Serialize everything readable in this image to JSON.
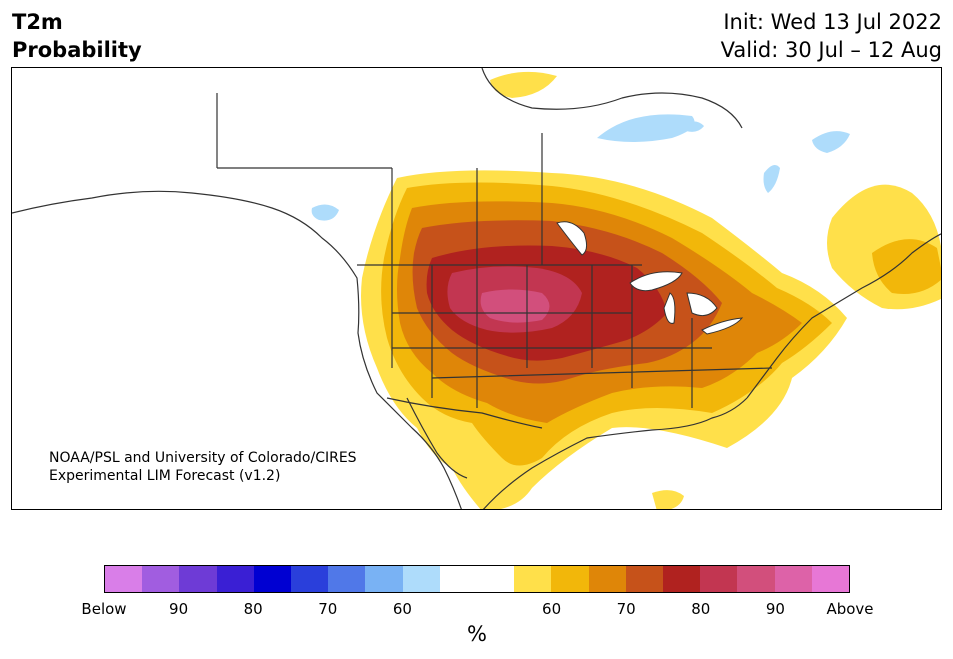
{
  "header": {
    "title_line1": "T2m",
    "title_line2": "Probability",
    "init_line": "Init: Wed 13 Jul 2022",
    "valid_line": "Valid: 30 Jul – 12 Aug"
  },
  "map": {
    "credit_line1": "NOAA/PSL and University of Colorado/CIRES",
    "credit_line2": "Experimental LIM Forecast (v1.2)"
  },
  "colorbar": {
    "colors": [
      "#d97ee8",
      "#a15de0",
      "#6e3bd6",
      "#3a1fd4",
      "#0000d2",
      "#2a3fdb",
      "#5078e8",
      "#79b2f4",
      "#aedcfb",
      "#ffffff",
      "#ffffff",
      "#ffe04a",
      "#f2b70a",
      "#df8608",
      "#c6521a",
      "#b0221f",
      "#c23651",
      "#d24f7c",
      "#dd62a8",
      "#e777d6"
    ],
    "tick_labels": [
      "Below",
      "90",
      "80",
      "70",
      "60",
      "60",
      "70",
      "80",
      "90",
      "Above"
    ],
    "unit_label": "%"
  }
}
